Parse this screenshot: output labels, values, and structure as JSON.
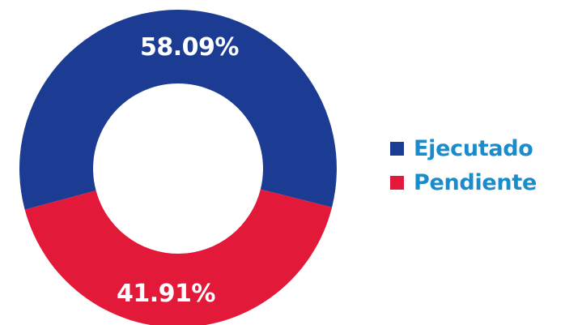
{
  "chart_data": {
    "type": "pie",
    "donut": true,
    "title": "",
    "legend_position": "right",
    "slices": [
      {
        "name": "Ejecutado",
        "value": 58.09,
        "label": "58.09%",
        "color": "#1c3c93"
      },
      {
        "name": "Pendiente",
        "value": 41.91,
        "label": "41.91%",
        "color": "#e3193a"
      }
    ]
  },
  "legend": {
    "text_color": "#1a8ccc"
  }
}
